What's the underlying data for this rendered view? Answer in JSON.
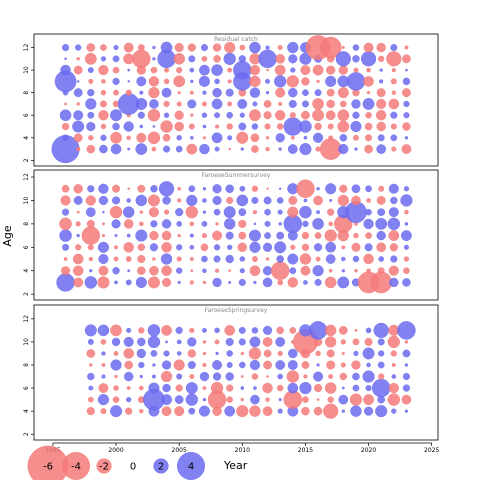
{
  "chart_data": {
    "type": "scatter",
    "subtype": "bubble",
    "ylabel": "Age",
    "xlabel": "Year",
    "xlim": [
      1993.5,
      2025.5
    ],
    "x_ticks": [
      1995,
      2000,
      2005,
      2010,
      2015,
      2020,
      2025
    ],
    "colors": {
      "positive": "#6b6bf0",
      "negative": "#f47a7a"
    },
    "legend": {
      "values": [
        -6,
        -4,
        -2,
        0,
        2,
        4
      ],
      "labels": [
        "-6",
        "-4",
        "-2",
        "0",
        "2",
        "4"
      ],
      "placement": "bottom-left"
    },
    "panels": [
      {
        "title": "Residual catch",
        "ylim": [
          1.5,
          13.2
        ],
        "y_ticks": [
          2,
          4,
          6,
          8,
          10,
          12
        ],
        "years": [
          1996,
          2023
        ],
        "ages": [
          3,
          12
        ],
        "big_points": [
          {
            "x": 1996,
            "y": 3,
            "v": 4
          },
          {
            "x": 1996,
            "y": 9,
            "v": 3
          },
          {
            "x": 2001,
            "y": 7,
            "v": 3
          },
          {
            "x": 2016,
            "y": 12,
            "v": -3.5
          },
          {
            "x": 2017,
            "y": 12,
            "v": -3
          },
          {
            "x": 2017,
            "y": 3,
            "v": -3
          },
          {
            "x": 2002,
            "y": 11,
            "v": -2.5
          },
          {
            "x": 2004,
            "y": 11,
            "v": 2.5
          },
          {
            "x": 2010,
            "y": 10,
            "v": 2.5
          },
          {
            "x": 2010,
            "y": 9,
            "v": 2.5
          },
          {
            "x": 2012,
            "y": 11,
            "v": 2.5
          },
          {
            "x": 2014,
            "y": 5,
            "v": 2.5
          },
          {
            "x": 2018,
            "y": 11,
            "v": 2
          },
          {
            "x": 2019,
            "y": 9,
            "v": 2.5
          },
          {
            "x": 2020,
            "y": 11,
            "v": 2
          },
          {
            "x": 2022,
            "y": 11,
            "v": -2
          }
        ]
      },
      {
        "title": "FaroeseSummersurvey",
        "ylim": [
          1.5,
          12.6
        ],
        "y_ticks": [
          2,
          4,
          6,
          8,
          10,
          12
        ],
        "years": [
          1996,
          2023
        ],
        "ages": [
          3,
          11
        ],
        "big_points": [
          {
            "x": 1996,
            "y": 3,
            "v": 2.5
          },
          {
            "x": 2013,
            "y": 4,
            "v": -2.5
          },
          {
            "x": 2014,
            "y": 8,
            "v": 2.5
          },
          {
            "x": 2019,
            "y": 9,
            "v": 3
          },
          {
            "x": 2020,
            "y": 3,
            "v": -3
          },
          {
            "x": 2021,
            "y": 3,
            "v": -3
          },
          {
            "x": 2015,
            "y": 11,
            "v": -2.5
          },
          {
            "x": 2004,
            "y": 11,
            "v": 2
          },
          {
            "x": 1998,
            "y": 7,
            "v": -2.5
          },
          {
            "x": 2018,
            "y": 8,
            "v": -2.5
          }
        ]
      },
      {
        "title": "FaroeseSpringsurvey",
        "ylim": [
          1.5,
          13.2
        ],
        "y_ticks": [
          2,
          4,
          6,
          8,
          10,
          12
        ],
        "years": [
          1998,
          2023
        ],
        "ages": [
          4,
          11
        ],
        "big_points": [
          {
            "x": 2003,
            "y": 5,
            "v": 3
          },
          {
            "x": 2015,
            "y": 10,
            "v": -3.5
          },
          {
            "x": 2014,
            "y": 5,
            "v": -2.5
          },
          {
            "x": 2016,
            "y": 11,
            "v": 2.5
          },
          {
            "x": 2021,
            "y": 6,
            "v": 2.5
          },
          {
            "x": 2023,
            "y": 11,
            "v": 2.5
          },
          {
            "x": 2008,
            "y": 5,
            "v": -2.5
          },
          {
            "x": 2021,
            "y": 11,
            "v": 2
          },
          {
            "x": 2017,
            "y": 4,
            "v": -2
          }
        ]
      }
    ]
  }
}
